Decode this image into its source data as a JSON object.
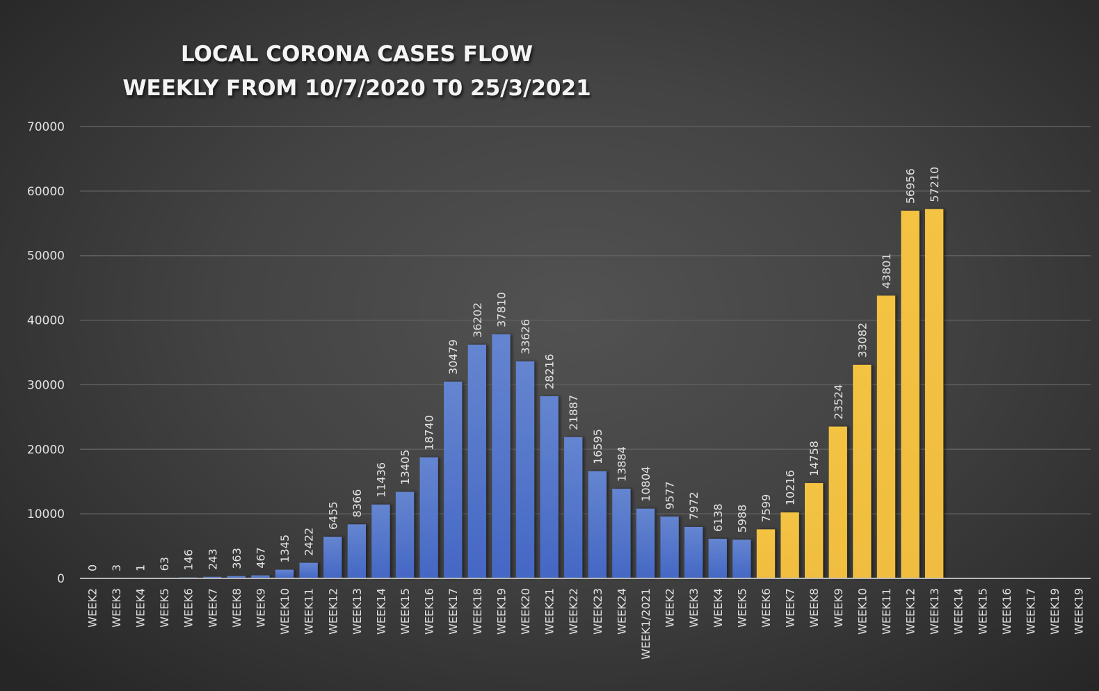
{
  "chart_data": {
    "type": "bar",
    "title": "LOCAL CORONA CASES FLOW",
    "subtitle": "WEEKLY FROM 10/7/2020 T0 25/3/2021",
    "xlabel": "",
    "ylabel": "",
    "ylim": [
      0,
      70000
    ],
    "yticks": [
      0,
      10000,
      20000,
      30000,
      40000,
      50000,
      60000,
      70000
    ],
    "grid": true,
    "legend": "none",
    "colors": {
      "series_2020": "#4a72c8",
      "series_2021_rise": "#f2c044"
    },
    "categories": [
      "WEEK2",
      "WEEK3",
      "WEEK4",
      "WEEK5",
      "WEEK6",
      "WEEK7",
      "WEEK8",
      "WEEK9",
      "WEEK10",
      "WEEK11",
      "WEEK12",
      "WEEK13",
      "WEEK14",
      "WEEK15",
      "WEEK16",
      "WEEK17",
      "WEEK18",
      "WEEK19",
      "WEEK20",
      "WEEK21",
      "WEEK22",
      "WEEK23",
      "WEEK24",
      "WEEK1/2021",
      "WEEK2",
      "WEEK3",
      "WEEK4",
      "WEEK5",
      "WEEK6",
      "WEEK7",
      "WEEK8",
      "WEEK9",
      "WEEK10",
      "WEEK11",
      "WEEK12",
      "WEEK13",
      "WEEK14",
      "WEEK15",
      "WEEK16",
      "WEEK17",
      "WEEK19",
      "WEEK19"
    ],
    "values": [
      0,
      3,
      1,
      63,
      146,
      243,
      363,
      467,
      1345,
      2422,
      6455,
      8366,
      11436,
      13405,
      18740,
      30479,
      36202,
      37810,
      33626,
      28216,
      21887,
      16595,
      13884,
      10804,
      9577,
      7972,
      6138,
      5988,
      7599,
      10216,
      14758,
      23524,
      33082,
      43801,
      56956,
      57210,
      null,
      null,
      null,
      null,
      null,
      null
    ],
    "bar_colors": [
      "blue",
      "blue",
      "blue",
      "blue",
      "blue",
      "blue",
      "blue",
      "blue",
      "blue",
      "blue",
      "blue",
      "blue",
      "blue",
      "blue",
      "blue",
      "blue",
      "blue",
      "blue",
      "blue",
      "blue",
      "blue",
      "blue",
      "blue",
      "blue",
      "blue",
      "blue",
      "blue",
      "blue",
      "yellow",
      "yellow",
      "yellow",
      "yellow",
      "yellow",
      "yellow",
      "yellow",
      "yellow",
      null,
      null,
      null,
      null,
      null,
      null
    ]
  }
}
